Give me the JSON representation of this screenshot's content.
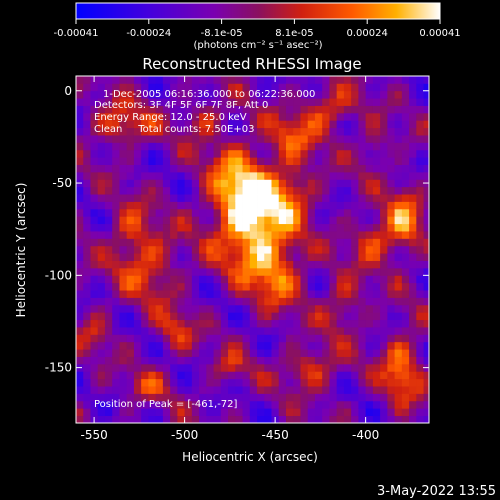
{
  "chart_data": {
    "type": "heatmap",
    "title": "Reconstructed RHESSI Image",
    "xlabel": "Heliocentric X (arcsec)",
    "ylabel": "Heliocentric Y (arcsec)",
    "xlim": [
      -560,
      -365
    ],
    "ylim": [
      -180,
      8
    ],
    "x_ticks": [
      -550,
      -500,
      -450,
      -400
    ],
    "y_ticks": [
      0,
      -50,
      -100,
      -150
    ],
    "colorbar": {
      "ticks": [
        "-0.00041",
        "-0.00024",
        "-8.1e-05",
        "8.1e-05",
        "0.00024",
        "0.00041"
      ],
      "unit_label": "(photons cm⁻² s⁻¹ asec⁻²)",
      "range": [
        -0.00041,
        0.00041
      ]
    },
    "annotations": [
      "1-Dec-2005 06:16:36.000 to 06:22:36.000",
      "Detectors: 3F 4F 5F 6F 7F 8F, Att 0",
      "Energy Range: 12.0 - 25.0 keV",
      "Clean     Total counts: 7.50E+03"
    ],
    "peak_label": "Position of Peak = [-461,-72]",
    "peak_position": [
      -461,
      -72
    ],
    "sources": [
      {
        "x": -461,
        "y": -72,
        "sx": 14,
        "sy": 20,
        "amp": 1.0
      },
      {
        "x": -472,
        "y": -50,
        "sx": 12,
        "sy": 16,
        "amp": 0.55
      },
      {
        "x": -448,
        "y": -100,
        "sx": 10,
        "sy": 12,
        "amp": 0.5
      },
      {
        "x": -440,
        "y": -55,
        "sx": 9,
        "sy": 10,
        "amp": 0.45
      },
      {
        "x": -535,
        "y": -18,
        "sx": 12,
        "sy": 8,
        "amp": 0.55
      },
      {
        "x": -420,
        "y": -10,
        "sx": 10,
        "sy": 8,
        "amp": 0.55
      },
      {
        "x": -440,
        "y": -25,
        "sx": 9,
        "sy": 9,
        "amp": 0.5
      },
      {
        "x": -520,
        "y": -95,
        "sx": 12,
        "sy": 14,
        "amp": 0.5
      },
      {
        "x": -530,
        "y": -75,
        "sx": 8,
        "sy": 10,
        "amp": 0.4
      },
      {
        "x": -505,
        "y": -130,
        "sx": 7,
        "sy": 8,
        "amp": 0.45
      },
      {
        "x": -395,
        "y": -80,
        "sx": 9,
        "sy": 9,
        "amp": 0.55
      },
      {
        "x": -378,
        "y": -70,
        "sx": 7,
        "sy": 14,
        "amp": 0.6
      },
      {
        "x": -412,
        "y": -115,
        "sx": 8,
        "sy": 10,
        "amp": 0.45
      },
      {
        "x": -430,
        "y": -150,
        "sx": 10,
        "sy": 8,
        "amp": 0.55
      },
      {
        "x": -380,
        "y": -150,
        "sx": 8,
        "sy": 14,
        "amp": 0.65
      },
      {
        "x": -520,
        "y": -160,
        "sx": 7,
        "sy": 6,
        "amp": 0.4
      },
      {
        "x": -490,
        "y": -15,
        "sx": 8,
        "sy": 7,
        "amp": 0.4
      },
      {
        "x": -475,
        "y": -150,
        "sx": 7,
        "sy": 6,
        "amp": 0.35
      },
      {
        "x": -550,
        "y": -130,
        "sx": 6,
        "sy": 8,
        "amp": 0.35
      },
      {
        "x": -395,
        "y": -30,
        "sx": 6,
        "sy": 8,
        "amp": 0.35
      }
    ]
  },
  "footer": {
    "date": "3-May-2022 13:55"
  }
}
